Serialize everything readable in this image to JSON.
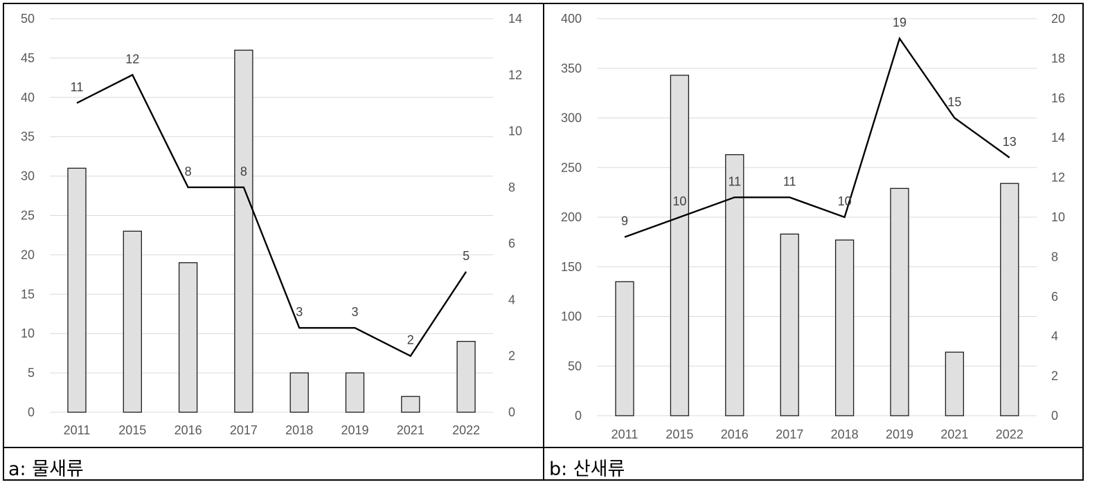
{
  "panels": [
    {
      "label": "a: 물새류"
    },
    {
      "label": "b: 산새류"
    }
  ],
  "colors": {
    "bar_fill": "#e0e0e0",
    "bar_stroke": "#1a1a1a",
    "line": "#000000",
    "grid": "#d9d9d9",
    "tick_text": "#595959"
  },
  "chart_data": [
    {
      "type": "bar+line",
      "categories": [
        "2011",
        "2015",
        "2016",
        "2017",
        "2018",
        "2019",
        "2021",
        "2022"
      ],
      "series": [
        {
          "axis": "left",
          "type": "bar",
          "values": [
            31,
            23,
            19,
            46,
            5,
            5,
            2,
            9
          ]
        },
        {
          "axis": "right",
          "type": "line",
          "values": [
            11,
            12,
            8,
            8,
            3,
            3,
            2,
            5
          ],
          "data_labels": true
        }
      ],
      "ylim_left": [
        0,
        50
      ],
      "yticks_left": [
        0,
        5,
        10,
        15,
        20,
        25,
        30,
        35,
        40,
        45,
        50
      ],
      "ylim_right": [
        0,
        14
      ],
      "yticks_right": [
        0,
        2,
        4,
        6,
        8,
        10,
        12,
        14
      ],
      "grid": true
    },
    {
      "type": "bar+line",
      "categories": [
        "2011",
        "2015",
        "2016",
        "2017",
        "2018",
        "2019",
        "2021",
        "2022"
      ],
      "series": [
        {
          "axis": "left",
          "type": "bar",
          "values": [
            135,
            343,
            263,
            183,
            177,
            229,
            64,
            234
          ]
        },
        {
          "axis": "right",
          "type": "line",
          "values": [
            9,
            10,
            11,
            11,
            10,
            19,
            15,
            13
          ],
          "data_labels": true
        }
      ],
      "ylim_left": [
        0,
        400
      ],
      "yticks_left": [
        0,
        50,
        100,
        150,
        200,
        250,
        300,
        350,
        400
      ],
      "ylim_right": [
        0,
        20
      ],
      "yticks_right": [
        0,
        2,
        4,
        6,
        8,
        10,
        12,
        14,
        16,
        18,
        20
      ],
      "grid": true
    }
  ]
}
